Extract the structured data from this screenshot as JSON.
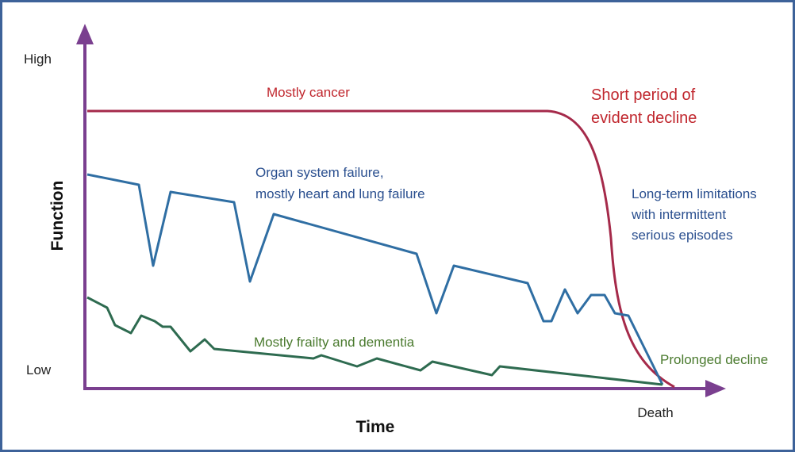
{
  "axes": {
    "y_high": "High",
    "y_low": "Low",
    "y_label": "Function",
    "x_label": "Time",
    "x_end": "Death"
  },
  "trajectories": [
    {
      "label": [
        "Mostly cancer"
      ],
      "note": [
        "Short period of",
        "evident decline"
      ]
    },
    {
      "label": [
        "Organ system failure,",
        "mostly heart and lung failure"
      ],
      "note": [
        "Long-term limitations",
        "with intermittent",
        "serious episodes"
      ]
    },
    {
      "label": [
        "Mostly frailty and dementia"
      ],
      "note": [
        "Prolonged decline"
      ]
    }
  ]
}
